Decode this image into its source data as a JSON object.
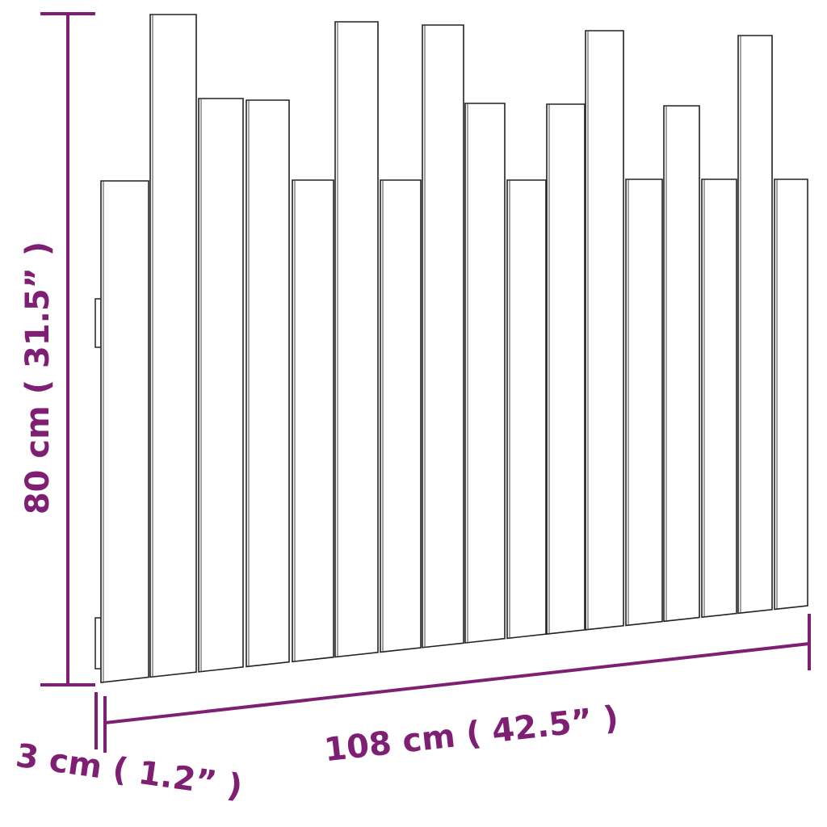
{
  "dimensions": {
    "height_label": "80 cm ( 31.5” )",
    "width_label": "108 cm ( 42.5” )",
    "depth_label": "3 cm ( 1.2” )"
  },
  "colors": {
    "dimension": "#7e1f74",
    "outline": "#222222",
    "plank_fill": "#ffffff"
  },
  "plank_count": 17
}
